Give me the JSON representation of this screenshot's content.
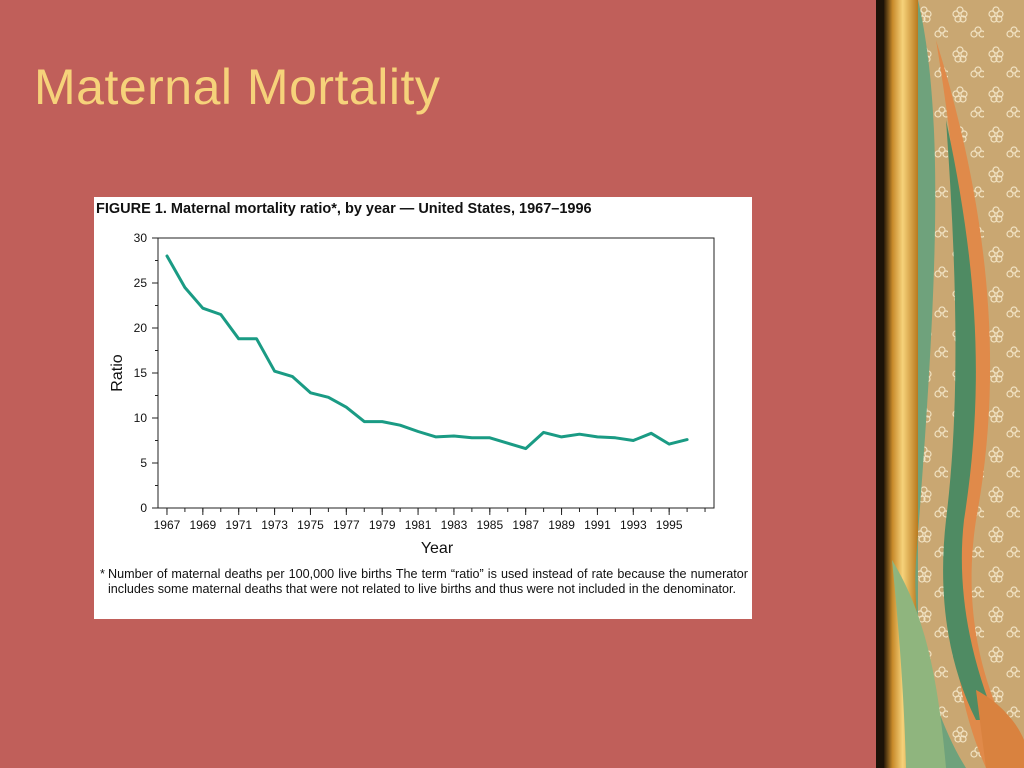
{
  "slide": {
    "title": "Maternal Mortality",
    "colors": {
      "background": "#c05f5a",
      "title": "#f6d27a",
      "line": "#1a9b84"
    }
  },
  "figure": {
    "title": "FIGURE 1. Maternal mortality ratio*, by year — United States, 1967–1996",
    "footnote_mark": "*",
    "footnote": "Number of maternal deaths per 100,000 live births The term “ratio” is used instead of rate because the numerator includes some maternal deaths that were not related to live births and thus were not included in the denominator."
  },
  "chart_data": {
    "type": "line",
    "title": "FIGURE 1. Maternal mortality ratio*, by year — United States, 1967–1996",
    "xlabel": "Year",
    "ylabel": "Ratio",
    "xlim": [
      1966.5,
      1997.5
    ],
    "ylim": [
      0,
      30
    ],
    "x_ticks": [
      "1967",
      "1969",
      "1971",
      "1973",
      "1975",
      "1977",
      "1979",
      "1981",
      "1983",
      "1985",
      "1987",
      "1989",
      "1991",
      "1993",
      "1995"
    ],
    "y_ticks": [
      "0",
      "5",
      "10",
      "15",
      "20",
      "25",
      "30"
    ],
    "grid": false,
    "series": [
      {
        "x": [
          1967,
          1968,
          1969,
          1970,
          1971,
          1972,
          1973,
          1974,
          1975,
          1976,
          1977,
          1978,
          1979,
          1980,
          1981,
          1982,
          1983,
          1984,
          1985,
          1986,
          1987,
          1988,
          1989,
          1990,
          1991,
          1992,
          1993,
          1994,
          1995,
          1996
        ],
        "values": [
          28.0,
          24.5,
          22.2,
          21.5,
          18.8,
          18.8,
          15.2,
          14.6,
          12.8,
          12.3,
          11.2,
          9.6,
          9.6,
          9.2,
          8.5,
          7.9,
          8.0,
          7.8,
          7.8,
          7.2,
          6.6,
          8.4,
          7.9,
          8.2,
          7.9,
          7.8,
          7.5,
          8.3,
          7.1,
          7.6
        ]
      }
    ]
  }
}
